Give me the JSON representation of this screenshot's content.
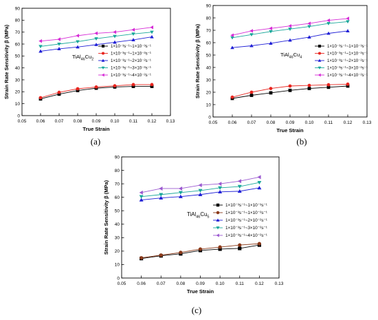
{
  "chart_data": [
    {
      "type": "line",
      "panel_label": "(a)",
      "xlabel": "True Strain",
      "ylabel": "Strain Rate Sensitivity β (MPa)",
      "alloy_label": "TiAl46Cu2",
      "alloy_label_parts": {
        "base": "TiAl",
        "sub1": "46",
        "mid": "Cu",
        "sub2": "2"
      },
      "xlim": [
        0.05,
        0.13
      ],
      "ylim": [
        0,
        90
      ],
      "xticks": [
        "0.05",
        "0.06",
        "0.07",
        "0.08",
        "0.09",
        "0.10",
        "0.11",
        "0.12",
        "0.13"
      ],
      "yticks": [
        "0",
        "10",
        "20",
        "30",
        "40",
        "50",
        "60",
        "70",
        "80",
        "90"
      ],
      "legend_position": "right",
      "x": [
        0.06,
        0.07,
        0.08,
        0.09,
        0.1,
        0.11,
        0.12
      ],
      "series": [
        {
          "name": "1×10⁻³s⁻¹~1×10⁻³s⁻¹",
          "color": "#000000",
          "marker": "square",
          "values": [
            14,
            18,
            21,
            23,
            24,
            24.5,
            24.5
          ]
        },
        {
          "name": "1×10⁻³s⁻¹~1×10⁻²s⁻¹",
          "color": "#e8251f",
          "marker": "circle",
          "values": [
            15,
            19.5,
            22.5,
            24,
            25,
            26,
            26
          ]
        },
        {
          "name": "1×10⁻³s⁻¹~2×10⁻²s⁻¹",
          "color": "#1f1fd6",
          "marker": "triangle-up",
          "values": [
            54,
            56,
            57.5,
            59.5,
            61.5,
            63.5,
            66
          ]
        },
        {
          "name": "1×10⁻³s⁻¹~3×10⁻²s⁻¹",
          "color": "#1aa89a",
          "marker": "triangle-down",
          "values": [
            58,
            60,
            62,
            64.5,
            66.5,
            68.5,
            70
          ]
        },
        {
          "name": "1×10⁻³s⁻¹~4×10⁻²s⁻¹",
          "color": "#d62bd6",
          "marker": "triangle-left",
          "values": [
            62.5,
            64,
            67,
            69,
            70,
            72,
            74
          ]
        }
      ]
    },
    {
      "type": "line",
      "panel_label": "(b)",
      "xlabel": "True Strain",
      "ylabel": "Strain Rate Sensitivity β (MPa)",
      "alloy_label": "TiAl46Cu4",
      "alloy_label_parts": {
        "base": "TiAl",
        "sub1": "46",
        "mid": "Cu",
        "sub2": "4"
      },
      "xlim": [
        0.05,
        0.13
      ],
      "ylim": [
        0,
        90
      ],
      "xticks": [
        "0.05",
        "0.06",
        "0.07",
        "0.08",
        "0.09",
        "0.10",
        "0.11",
        "0.12",
        "0.13"
      ],
      "yticks": [
        "0",
        "10",
        "20",
        "30",
        "40",
        "50",
        "60",
        "70",
        "80",
        "90"
      ],
      "legend_position": "right",
      "x": [
        0.06,
        0.07,
        0.08,
        0.09,
        0.1,
        0.11,
        0.12
      ],
      "series": [
        {
          "name": "1×10⁻³s⁻¹~1×10⁻³s⁻¹",
          "color": "#000000",
          "marker": "square",
          "values": [
            15,
            17.5,
            19.5,
            21.5,
            23,
            24,
            25
          ]
        },
        {
          "name": "1×10⁻³s⁻¹~1×10⁻²s⁻¹",
          "color": "#e8251f",
          "marker": "circle",
          "values": [
            16,
            20,
            23,
            25,
            25.5,
            26,
            26.5
          ]
        },
        {
          "name": "1×10⁻³s⁻¹~2×10⁻²s⁻¹",
          "color": "#1f1fd6",
          "marker": "triangle-up",
          "values": [
            56,
            57.5,
            59.5,
            62,
            64.5,
            67.5,
            69.5
          ]
        },
        {
          "name": "1×10⁻³s⁻¹~3×10⁻²s⁻¹",
          "color": "#1aa89a",
          "marker": "triangle-down",
          "values": [
            64,
            66.5,
            69,
            71,
            73,
            75.5,
            77
          ]
        },
        {
          "name": "1×10⁻³s⁻¹~4×10⁻²s⁻¹",
          "color": "#d62bd6",
          "marker": "triangle-left",
          "values": [
            66,
            69.5,
            71.5,
            73.5,
            75.5,
            78,
            79.5
          ]
        }
      ]
    },
    {
      "type": "line",
      "panel_label": "(c)",
      "xlabel": "True Strain",
      "ylabel": "Strain Rate Sensitivity β (MPa)",
      "alloy_label": "TiAl46Cu5",
      "alloy_label_parts": {
        "base": "TiAl",
        "sub1": "46",
        "mid": "Cu",
        "sub2": "5"
      },
      "xlim": [
        0.05,
        0.13
      ],
      "ylim": [
        0,
        90
      ],
      "xticks": [
        "0.05",
        "0.06",
        "0.07",
        "0.08",
        "0.09",
        "0.10",
        "0.11",
        "0.12",
        "0.13"
      ],
      "yticks": [
        "0",
        "10",
        "20",
        "30",
        "40",
        "50",
        "60",
        "70",
        "80",
        "90"
      ],
      "legend_position": "right",
      "x": [
        0.06,
        0.07,
        0.08,
        0.09,
        0.1,
        0.11,
        0.12
      ],
      "series": [
        {
          "name": "1×10⁻³s⁻¹~1×10⁻³s⁻¹",
          "color": "#000000",
          "marker": "square",
          "values": [
            14.5,
            16.5,
            18,
            20.5,
            21.5,
            22,
            24.5
          ]
        },
        {
          "name": "1×10⁻³s⁻¹~1×10⁻²s⁻¹",
          "color": "#8b3a1a",
          "marker": "circle",
          "values": [
            15,
            17,
            19,
            21.5,
            23,
            24.5,
            25.5
          ]
        },
        {
          "name": "1×10⁻³s⁻¹~2×10⁻²s⁻¹",
          "color": "#1f1fd6",
          "marker": "triangle-up",
          "values": [
            58,
            59.5,
            60.5,
            62,
            64,
            64.5,
            67
          ]
        },
        {
          "name": "1×10⁻³s⁻¹~3×10⁻²s⁻¹",
          "color": "#1aa89a",
          "marker": "triangle-down",
          "values": [
            60.5,
            62,
            63.5,
            65,
            67,
            68,
            71
          ]
        },
        {
          "name": "1×10⁻³s⁻¹~4×10⁻²s⁻¹",
          "color": "#9b59d0",
          "marker": "triangle-left",
          "values": [
            63.5,
            66.5,
            66.5,
            69,
            70,
            72,
            75
          ]
        }
      ]
    }
  ]
}
